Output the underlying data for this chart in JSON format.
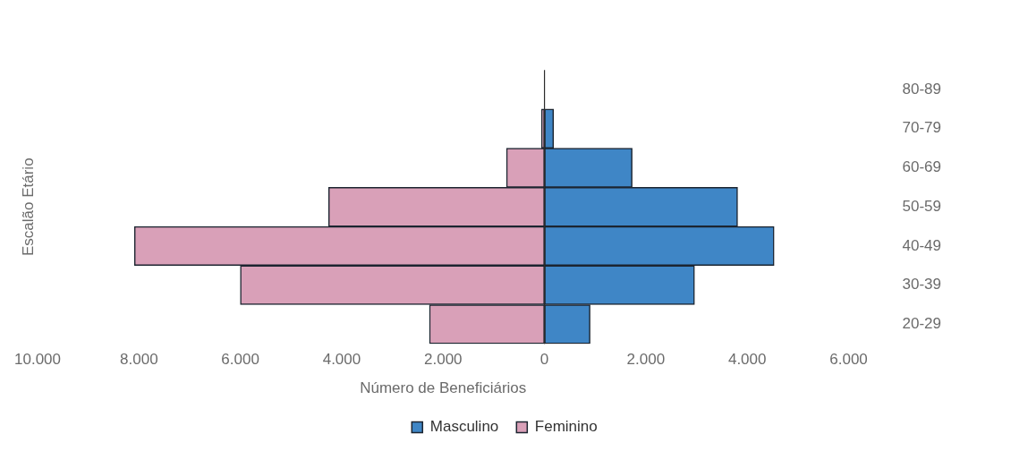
{
  "chart_data": {
    "type": "bar",
    "orientation": "horizontal",
    "categories": [
      "80-89",
      "70-79",
      "60-69",
      "50-59",
      "40-49",
      "30-39",
      "20-29"
    ],
    "series": [
      {
        "name": "Masculino",
        "color": "#3f86c6",
        "values": [
          0,
          180,
          1730,
          3810,
          4530,
          2960,
          900
        ]
      },
      {
        "name": "Feminino",
        "color": "#d9a0b8",
        "values": [
          0,
          -60,
          -750,
          -4260,
          -8090,
          -6000,
          -2270
        ]
      }
    ],
    "xlim": [
      -10000,
      6000
    ],
    "xticks": [
      {
        "value": -10000,
        "label": "10.000"
      },
      {
        "value": -8000,
        "label": "8.000"
      },
      {
        "value": -6000,
        "label": "6.000"
      },
      {
        "value": -4000,
        "label": "4.000"
      },
      {
        "value": -2000,
        "label": "2.000"
      },
      0,
      {
        "value": 2000,
        "label": "2.000"
      },
      {
        "value": 4000,
        "label": "4.000"
      },
      {
        "value": 6000,
        "label": "6.000"
      }
    ],
    "xlabel": "Número de Beneficiários",
    "ylabel": "Escalão Etário",
    "legend": "bottom",
    "stacked": true,
    "ref_lines": [
      {
        "axis": "x",
        "value": 0,
        "color": "#2b2b2b"
      }
    ]
  }
}
